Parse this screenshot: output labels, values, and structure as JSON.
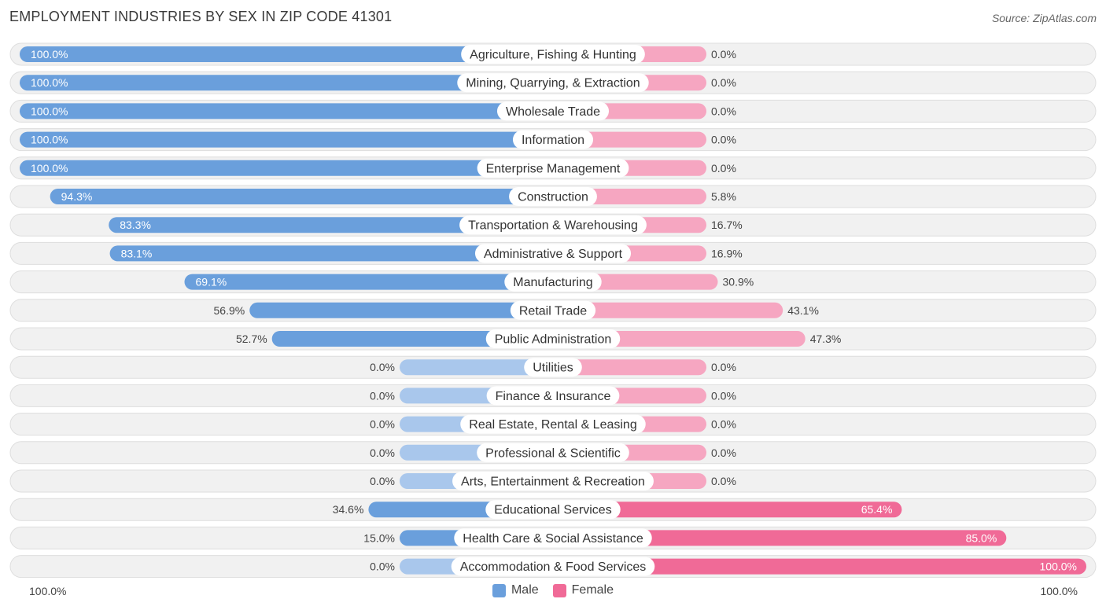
{
  "title": "EMPLOYMENT INDUSTRIES BY SEX IN ZIP CODE 41301",
  "source": "Source: ZipAtlas.com",
  "axis": {
    "left_label": "100.0%",
    "right_label": "100.0%"
  },
  "legend": {
    "male": "Male",
    "female": "Female"
  },
  "colors": {
    "male": "#6a9fdc",
    "male_light": "#a9c7ec",
    "female": "#f06a97",
    "female_light": "#f6a6c1",
    "track": "#f1f1f1",
    "track_border": "#dedede"
  },
  "chart_data": {
    "type": "bar",
    "orientation": "horizontal-diverging",
    "title": "EMPLOYMENT INDUSTRIES BY SEX IN ZIP CODE 41301",
    "categories": [
      "Agriculture, Fishing & Hunting",
      "Mining, Quarrying, & Extraction",
      "Wholesale Trade",
      "Information",
      "Enterprise Management",
      "Construction",
      "Transportation & Warehousing",
      "Administrative & Support",
      "Manufacturing",
      "Retail Trade",
      "Public Administration",
      "Utilities",
      "Finance & Insurance",
      "Real Estate, Rental & Leasing",
      "Professional & Scientific",
      "Arts, Entertainment & Recreation",
      "Educational Services",
      "Health Care & Social Assistance",
      "Accommodation & Food Services"
    ],
    "series": [
      {
        "name": "Male",
        "values": [
          100.0,
          100.0,
          100.0,
          100.0,
          100.0,
          94.3,
          83.3,
          83.1,
          69.1,
          56.9,
          52.7,
          0.0,
          0.0,
          0.0,
          0.0,
          0.0,
          34.6,
          15.0,
          0.0
        ],
        "labels": [
          "100.0%",
          "100.0%",
          "100.0%",
          "100.0%",
          "100.0%",
          "94.3%",
          "83.3%",
          "83.1%",
          "69.1%",
          "56.9%",
          "52.7%",
          "0.0%",
          "0.0%",
          "0.0%",
          "0.0%",
          "0.0%",
          "34.6%",
          "15.0%",
          "0.0%"
        ]
      },
      {
        "name": "Female",
        "values": [
          0.0,
          0.0,
          0.0,
          0.0,
          0.0,
          5.8,
          16.7,
          16.9,
          30.9,
          43.1,
          47.3,
          0.0,
          0.0,
          0.0,
          0.0,
          0.0,
          65.4,
          85.0,
          100.0
        ],
        "labels": [
          "0.0%",
          "0.0%",
          "0.0%",
          "0.0%",
          "0.0%",
          "5.8%",
          "16.7%",
          "16.9%",
          "30.9%",
          "43.1%",
          "47.3%",
          "0.0%",
          "0.0%",
          "0.0%",
          "0.0%",
          "0.0%",
          "65.4%",
          "85.0%",
          "100.0%"
        ]
      }
    ],
    "xlim": [
      -100,
      100
    ],
    "legend_position": "bottom-center"
  }
}
